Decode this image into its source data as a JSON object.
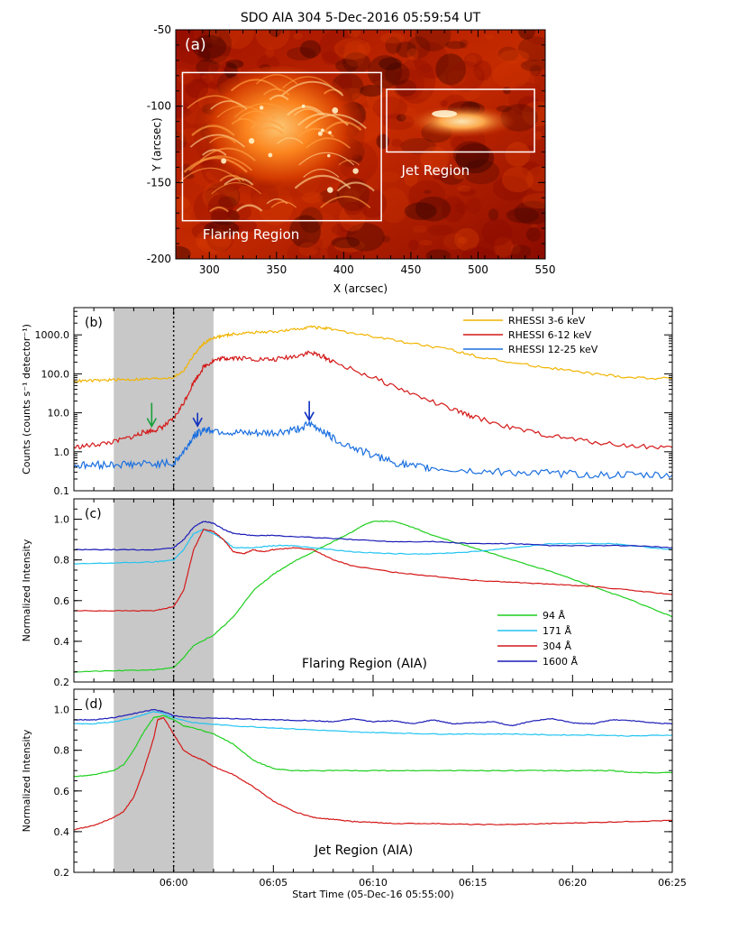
{
  "chart_data": [
    {
      "panel_id": "a",
      "type": "image",
      "panel_label": "(a)",
      "title": "SDO AIA 304 5-Dec-2016 05:59:54 UT",
      "xlabel": "X (arcsec)",
      "ylabel": "Y (arcsec)",
      "xlim": [
        275,
        550
      ],
      "ylim": [
        -200,
        -50
      ],
      "xticks": [
        300,
        350,
        400,
        450,
        500,
        550
      ],
      "yticks": [
        -200,
        -150,
        -100,
        -50
      ],
      "colormap": [
        "#2a0000",
        "#8a0a00",
        "#d43a00",
        "#ff8a20",
        "#ffe2a0"
      ],
      "regions": [
        {
          "label": "Flaring Region",
          "x0": 280,
          "x1": 428,
          "y0": -175,
          "y1": -78
        },
        {
          "label": "Jet Region",
          "x0": 432,
          "x1": 542,
          "y0": -130,
          "y1": -89
        }
      ]
    },
    {
      "panel_id": "b",
      "type": "line",
      "panel_label": "(b)",
      "ylabel": "Counts (counts s⁻¹ detector⁻¹)",
      "yscale": "log",
      "ylim": [
        0.1,
        5000
      ],
      "yticks": [
        0.1,
        1.0,
        10.0,
        100.0,
        1000.0
      ],
      "yticklabels": [
        "0.1",
        "1.0",
        "10.0",
        "100.0",
        "1000.0"
      ],
      "xlim": [
        0,
        30
      ],
      "legend_position": "top-right",
      "shaded_interval": [
        2,
        7
      ],
      "vertical_line": 5,
      "arrows": [
        {
          "x": 3.9,
          "y_top": 18,
          "y_tip": 4.5,
          "color": "#1a9f3a"
        },
        {
          "x": 6.2,
          "y_top": 10,
          "y_tip": 4.6,
          "color": "#1030c0"
        },
        {
          "x": 11.8,
          "y_top": 20,
          "y_tip": 6.5,
          "color": "#1030c0"
        }
      ],
      "series": [
        {
          "name": "RHESSI 3-6 keV",
          "color": "#f2b400",
          "x": [
            0,
            1,
            2,
            3,
            4,
            5,
            5.5,
            6,
            6.5,
            7,
            7.5,
            8,
            9,
            10,
            11,
            11.8,
            12.5,
            13,
            15,
            17,
            19,
            20,
            22,
            24,
            26,
            28,
            30
          ],
          "y": [
            65,
            67,
            70,
            72,
            75,
            82,
            120,
            300,
            600,
            850,
            950,
            1050,
            1150,
            1200,
            1350,
            1600,
            1500,
            1350,
            900,
            600,
            400,
            300,
            190,
            140,
            100,
            80,
            75
          ]
        },
        {
          "name": "RHESSI 6-12 keV",
          "color": "#d41818",
          "x": [
            0,
            1,
            2,
            3,
            3.5,
            4,
            4.5,
            5,
            5.5,
            6,
            6.5,
            7,
            7.5,
            8,
            9,
            10,
            11,
            11.8,
            12.5,
            13,
            15,
            17,
            19,
            20,
            22,
            24,
            26,
            28,
            30
          ],
          "y": [
            1.3,
            1.5,
            1.8,
            2.5,
            3.2,
            3.5,
            4.5,
            7,
            18,
            60,
            150,
            220,
            250,
            260,
            240,
            230,
            280,
            350,
            280,
            200,
            80,
            30,
            12,
            8,
            4,
            2.5,
            1.8,
            1.4,
            1.3
          ]
        },
        {
          "name": "RHESSI 12-25 keV",
          "color": "#1a6fe0",
          "x": [
            0,
            1,
            2,
            3,
            4,
            5,
            5.5,
            6,
            6.5,
            7,
            8,
            9,
            10,
            11,
            11.8,
            12.5,
            13,
            14,
            15,
            16,
            17,
            18,
            20,
            22,
            24,
            26,
            28,
            30
          ],
          "y": [
            0.45,
            0.45,
            0.48,
            0.48,
            0.5,
            0.5,
            1.0,
            2.5,
            3.8,
            3.6,
            3.0,
            2.9,
            3.0,
            3.6,
            5.0,
            3.5,
            2.2,
            1.3,
            0.8,
            0.55,
            0.42,
            0.38,
            0.32,
            0.3,
            0.28,
            0.26,
            0.25,
            0.25
          ]
        }
      ]
    },
    {
      "panel_id": "c",
      "type": "line",
      "panel_label": "(c)",
      "annotation": "Flaring Region (AIA)",
      "ylabel": "Normalized Intensity",
      "ylim": [
        0.2,
        1.1
      ],
      "yticks": [
        0.2,
        0.4,
        0.6,
        0.8,
        1.0
      ],
      "yticklabels": [
        "0.2",
        "0.4",
        "0.6",
        "0.8",
        "1.0"
      ],
      "xlim": [
        0,
        30
      ],
      "legend_position": "bottom-right",
      "shaded_interval": [
        2,
        7
      ],
      "vertical_line": 5,
      "series": [
        {
          "name": "94 Å",
          "color": "#1fcf1f",
          "x": [
            0,
            2,
            4,
            5,
            5.5,
            6,
            7,
            8,
            9,
            10,
            11,
            12,
            13,
            14,
            14.5,
            15,
            16,
            17,
            18,
            20,
            22,
            24,
            26,
            28,
            30
          ],
          "y": [
            0.25,
            0.255,
            0.26,
            0.27,
            0.32,
            0.38,
            0.43,
            0.52,
            0.65,
            0.73,
            0.79,
            0.84,
            0.89,
            0.94,
            0.97,
            0.99,
            0.99,
            0.96,
            0.92,
            0.86,
            0.8,
            0.74,
            0.67,
            0.6,
            0.52
          ]
        },
        {
          "name": "171 Å",
          "color": "#22c4f2",
          "x": [
            0,
            2,
            4,
            5,
            5.5,
            6,
            6.5,
            7,
            7.5,
            8,
            9,
            10,
            11,
            12,
            14,
            16,
            18,
            20,
            22,
            24,
            26,
            27,
            28,
            30
          ],
          "y": [
            0.78,
            0.785,
            0.79,
            0.8,
            0.85,
            0.93,
            0.95,
            0.93,
            0.9,
            0.86,
            0.86,
            0.87,
            0.87,
            0.86,
            0.84,
            0.83,
            0.83,
            0.84,
            0.86,
            0.88,
            0.88,
            0.88,
            0.87,
            0.85
          ]
        },
        {
          "name": "304 Å",
          "color": "#d41818",
          "x": [
            0,
            2,
            4,
            5,
            5.5,
            6,
            6.5,
            7,
            7.5,
            8,
            8.5,
            9,
            9.5,
            10,
            11,
            12,
            13,
            14,
            16,
            18,
            20,
            22,
            24,
            26,
            28,
            30
          ],
          "y": [
            0.55,
            0.55,
            0.55,
            0.57,
            0.65,
            0.85,
            0.95,
            0.94,
            0.9,
            0.84,
            0.83,
            0.85,
            0.84,
            0.85,
            0.86,
            0.85,
            0.8,
            0.77,
            0.74,
            0.72,
            0.7,
            0.69,
            0.68,
            0.67,
            0.65,
            0.63
          ]
        },
        {
          "name": "1600 Å",
          "color": "#1c1cb8",
          "x": [
            0,
            2,
            4,
            5,
            5.5,
            6,
            6.5,
            7,
            7.5,
            8,
            9,
            10,
            12,
            14,
            16,
            18,
            20,
            22,
            24,
            26,
            28,
            30
          ],
          "y": [
            0.85,
            0.85,
            0.85,
            0.86,
            0.9,
            0.96,
            0.99,
            0.98,
            0.95,
            0.93,
            0.92,
            0.92,
            0.91,
            0.9,
            0.89,
            0.89,
            0.88,
            0.88,
            0.87,
            0.87,
            0.87,
            0.86
          ]
        }
      ]
    },
    {
      "panel_id": "d",
      "type": "line",
      "panel_label": "(d)",
      "annotation": "Jet Region (AIA)",
      "ylabel": "Normalized Intensity",
      "xlabel": "Start Time (05-Dec-16 05:55:00)",
      "ylim": [
        0.2,
        1.1
      ],
      "yticks": [
        0.2,
        0.4,
        0.6,
        0.8,
        1.0
      ],
      "yticklabels": [
        "0.2",
        "0.4",
        "0.6",
        "0.8",
        "1.0"
      ],
      "xlim": [
        0,
        30
      ],
      "xticks": [
        0,
        5,
        10,
        15,
        20,
        25,
        30
      ],
      "xticklabels": [
        "",
        "06:00",
        "06:05",
        "06:10",
        "06:15",
        "06:20",
        "06:25"
      ],
      "shaded_interval": [
        2,
        7
      ],
      "vertical_line": 5,
      "series": [
        {
          "name": "1600 Å",
          "color": "#1c1cb8",
          "x": [
            0,
            1,
            2,
            3,
            4,
            4.5,
            5,
            6,
            8,
            10,
            12,
            13,
            14,
            15,
            16,
            17,
            18,
            19,
            20,
            21,
            22,
            23,
            24,
            25,
            26,
            27,
            28,
            29,
            30
          ],
          "y": [
            0.95,
            0.95,
            0.96,
            0.98,
            1.0,
            0.99,
            0.97,
            0.96,
            0.955,
            0.95,
            0.945,
            0.94,
            0.955,
            0.94,
            0.945,
            0.93,
            0.95,
            0.93,
            0.935,
            0.94,
            0.92,
            0.945,
            0.955,
            0.935,
            0.93,
            0.95,
            0.945,
            0.935,
            0.93
          ]
        },
        {
          "name": "171 Å",
          "color": "#22c4f2",
          "x": [
            0,
            1,
            2,
            3,
            4,
            4.5,
            5,
            6,
            8,
            10,
            12,
            14,
            16,
            18,
            20,
            22,
            24,
            26,
            28,
            30
          ],
          "y": [
            0.93,
            0.93,
            0.94,
            0.96,
            0.99,
            0.98,
            0.96,
            0.935,
            0.92,
            0.91,
            0.9,
            0.89,
            0.885,
            0.88,
            0.88,
            0.88,
            0.875,
            0.875,
            0.87,
            0.875
          ]
        },
        {
          "name": "94 Å",
          "color": "#1fcf1f",
          "x": [
            0,
            1,
            2,
            2.5,
            3,
            3.5,
            4,
            4.5,
            5,
            5.5,
            6,
            7,
            8,
            9,
            10,
            11,
            12,
            14,
            16,
            18,
            20,
            22,
            24,
            26,
            27,
            28,
            30
          ],
          "y": [
            0.67,
            0.68,
            0.7,
            0.73,
            0.8,
            0.89,
            0.96,
            0.97,
            0.95,
            0.92,
            0.91,
            0.88,
            0.83,
            0.75,
            0.71,
            0.7,
            0.7,
            0.7,
            0.7,
            0.7,
            0.7,
            0.7,
            0.7,
            0.7,
            0.7,
            0.69,
            0.69
          ]
        },
        {
          "name": "304 Å",
          "color": "#d41818",
          "x": [
            0,
            1,
            2,
            2.5,
            3,
            3.5,
            4,
            4.2,
            4.5,
            5,
            5.5,
            6,
            6.5,
            7,
            8,
            9,
            10,
            11,
            12,
            13,
            14,
            15,
            16,
            18,
            20,
            22,
            24,
            26,
            28,
            30
          ],
          "y": [
            0.41,
            0.43,
            0.47,
            0.5,
            0.57,
            0.7,
            0.86,
            0.95,
            0.96,
            0.88,
            0.8,
            0.77,
            0.75,
            0.72,
            0.68,
            0.62,
            0.55,
            0.5,
            0.47,
            0.46,
            0.45,
            0.445,
            0.44,
            0.44,
            0.435,
            0.435,
            0.44,
            0.445,
            0.45,
            0.455
          ]
        }
      ]
    }
  ]
}
